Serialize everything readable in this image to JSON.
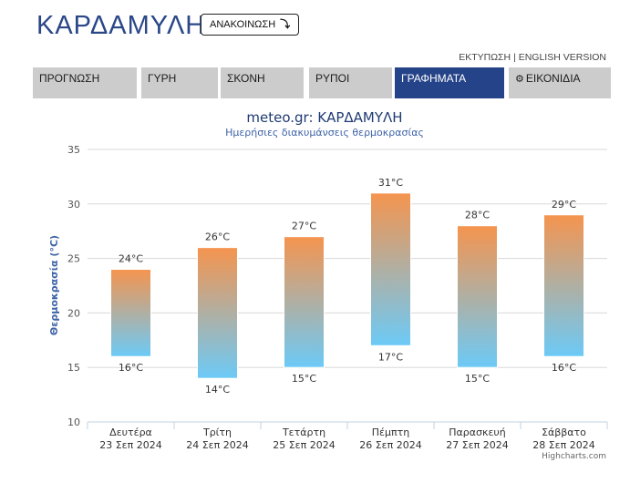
{
  "header": {
    "title": "ΚΑΡΔΑΜΥΛΗ",
    "announce_label": "ΑΝΑΚΟΙΝΩΣΗ",
    "announce_icon": "curved-arrow-icon",
    "print_label": "ΕΚΤΥΠΩΣΗ",
    "separator": "|",
    "english_label": "ENGLISH VERSION"
  },
  "tabs": [
    {
      "label": "ΠΡΟΓΝΩΣΗ"
    },
    {
      "label": "ΓΥΡΗ"
    },
    {
      "label": "ΣΚΟΝΗ"
    },
    {
      "label": "ΡΥΠΟΙ"
    },
    {
      "label": "ΓΡΑΦΗΜΑΤΑ",
      "active": true
    },
    {
      "label": "ΕΙΚΟΝΙΔΙΑ",
      "icon": "gear-icon"
    }
  ],
  "chart_data": {
    "type": "bar",
    "subtype": "columnrange",
    "title": "meteo.gr: ΚΑΡΔΑΜΥΛΗ",
    "subtitle": "Ημερήσιες διακυμάνσεις θερμοκρασίας",
    "ylabel": "Θερμοκρασία (°C)",
    "ylim": [
      10,
      35
    ],
    "yticks": [
      10,
      15,
      20,
      25,
      30,
      35
    ],
    "unit": "°C",
    "categories": [
      {
        "day": "Δευτέρα",
        "date": "23 Σεπ 2024"
      },
      {
        "day": "Τρίτη",
        "date": "24 Σεπ 2024"
      },
      {
        "day": "Τετάρτη",
        "date": "25 Σεπ 2024"
      },
      {
        "day": "Πέμπτη",
        "date": "26 Σεπ 2024"
      },
      {
        "day": "Παρασκευή",
        "date": "27 Σεπ 2024"
      },
      {
        "day": "Σάββατο",
        "date": "28 Σεπ 2024"
      }
    ],
    "low": [
      16,
      14,
      15,
      17,
      15,
      16
    ],
    "high": [
      24,
      26,
      27,
      31,
      28,
      29
    ],
    "grid": true,
    "credit": "Highcharts.com",
    "colors": {
      "top": "#f5944e",
      "bottom": "#6ccaf7",
      "title": "#1f3b73",
      "subtitle": "#3f64a8",
      "ylabel": "#3f64a8"
    }
  }
}
